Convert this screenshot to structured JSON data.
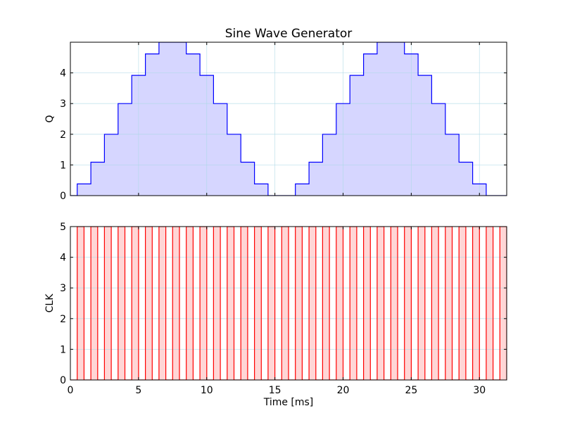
{
  "chart_data": [
    {
      "type": "line",
      "style": "step-filled",
      "title": "Sine Wave Generator",
      "xlabel": "",
      "ylabel": "Q",
      "xlim": [
        0,
        32
      ],
      "ylim": [
        0,
        5
      ],
      "xticks": [
        0,
        5,
        10,
        15,
        20,
        25,
        30
      ],
      "yticks": [
        0,
        1,
        2,
        3,
        4
      ],
      "ytick_labels": [
        "0",
        "1",
        "2",
        "3",
        "4"
      ],
      "grid": true,
      "line_color": "#0000ff",
      "fill_color": "#d6d6ff",
      "step_edges": [
        0,
        0.5,
        1.5,
        2.5,
        3.5,
        4.5,
        5.5,
        6.5,
        8.5,
        9.5,
        10.5,
        11.5,
        12.5,
        13.5,
        14.5,
        16.5,
        17.5,
        18.5,
        19.5,
        20.5,
        21.5,
        22.5,
        24.5,
        25.5,
        26.5,
        27.5,
        28.5,
        29.5,
        30.5,
        32
      ],
      "step_values": [
        0,
        0.38,
        1.09,
        2.0,
        3.0,
        3.92,
        4.62,
        5.0,
        4.62,
        3.92,
        3.0,
        2.0,
        1.09,
        0.38,
        0,
        0.38,
        1.09,
        2.0,
        3.0,
        3.92,
        4.62,
        5.0,
        4.62,
        3.92,
        3.0,
        2.0,
        1.09,
        0.38,
        0
      ]
    },
    {
      "type": "line",
      "style": "square-wave-filled",
      "title": "",
      "xlabel": "Time [ms]",
      "ylabel": "CLK",
      "xlim": [
        0,
        32
      ],
      "ylim": [
        0,
        5
      ],
      "xticks": [
        0,
        5,
        10,
        15,
        20,
        25,
        30
      ],
      "xtick_labels": [
        "0",
        "5",
        "10",
        "15",
        "20",
        "25",
        "30"
      ],
      "yticks": [
        0,
        1,
        2,
        3,
        4,
        5
      ],
      "ytick_labels": [
        "0",
        "1",
        "2",
        "3",
        "4",
        "5"
      ],
      "grid": true,
      "line_color": "#ff0000",
      "fill_color": "#ffd6d6",
      "period_ms": 1,
      "high_start_offset_ms": 0.5,
      "high_duration_ms": 0.5,
      "high_value": 5,
      "low_value": 0
    }
  ]
}
